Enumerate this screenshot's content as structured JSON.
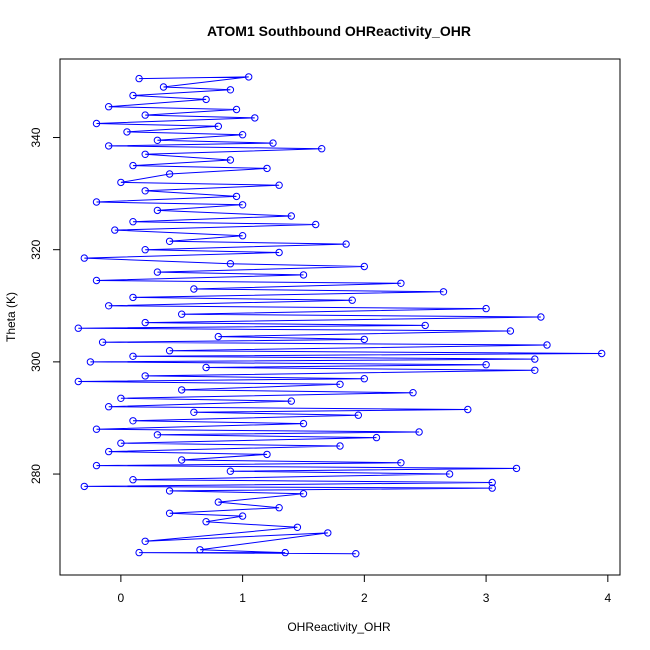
{
  "chart_data": {
    "type": "line",
    "title": "ATOM1 Southbound OHReactivity_OHR",
    "xlabel": "OHReactivity_OHR",
    "ylabel": "Theta (K)",
    "xlim": [
      -0.5,
      4.1
    ],
    "ylim": [
      262,
      354
    ],
    "xticks": [
      0,
      1,
      2,
      3,
      4
    ],
    "yticks": [
      280,
      300,
      320,
      340
    ],
    "grid": false,
    "legend": "none",
    "series_color": "#0000ff",
    "marker": "open-circle",
    "series": [
      {
        "values": [
          [
            0.15,
            350.5
          ],
          [
            1.05,
            350.8
          ],
          [
            0.35,
            349.0
          ],
          [
            0.9,
            348.5
          ],
          [
            0.1,
            347.5
          ],
          [
            0.7,
            346.8
          ],
          [
            -0.1,
            345.5
          ],
          [
            0.95,
            345.0
          ],
          [
            0.2,
            344.0
          ],
          [
            1.1,
            343.5
          ],
          [
            -0.2,
            342.5
          ],
          [
            0.8,
            342.0
          ],
          [
            0.05,
            341.0
          ],
          [
            1.0,
            340.5
          ],
          [
            0.3,
            339.5
          ],
          [
            1.25,
            339.0
          ],
          [
            -0.1,
            338.5
          ],
          [
            1.65,
            338.0
          ],
          [
            0.2,
            337.0
          ],
          [
            0.9,
            336.0
          ],
          [
            0.1,
            335.0
          ],
          [
            1.2,
            334.5
          ],
          [
            0.4,
            333.5
          ],
          [
            0.0,
            332.0
          ],
          [
            1.3,
            331.5
          ],
          [
            0.2,
            330.5
          ],
          [
            0.95,
            329.5
          ],
          [
            -0.2,
            328.5
          ],
          [
            1.0,
            328.0
          ],
          [
            0.3,
            327.0
          ],
          [
            1.4,
            326.0
          ],
          [
            0.1,
            325.0
          ],
          [
            1.6,
            324.5
          ],
          [
            -0.05,
            323.5
          ],
          [
            1.0,
            322.5
          ],
          [
            0.4,
            321.5
          ],
          [
            1.85,
            321.0
          ],
          [
            0.2,
            320.0
          ],
          [
            1.3,
            319.5
          ],
          [
            -0.3,
            318.5
          ],
          [
            0.9,
            317.5
          ],
          [
            2.0,
            317.0
          ],
          [
            0.3,
            316.0
          ],
          [
            1.5,
            315.5
          ],
          [
            -0.2,
            314.5
          ],
          [
            2.3,
            314.0
          ],
          [
            0.6,
            313.0
          ],
          [
            2.65,
            312.5
          ],
          [
            0.1,
            311.5
          ],
          [
            1.9,
            311.0
          ],
          [
            -0.1,
            310.0
          ],
          [
            3.0,
            309.5
          ],
          [
            0.5,
            308.5
          ],
          [
            3.45,
            308.0
          ],
          [
            0.2,
            307.0
          ],
          [
            2.5,
            306.5
          ],
          [
            -0.35,
            306.0
          ],
          [
            3.2,
            305.5
          ],
          [
            0.8,
            304.5
          ],
          [
            2.0,
            304.0
          ],
          [
            -0.15,
            303.5
          ],
          [
            3.5,
            303.0
          ],
          [
            0.4,
            302.0
          ],
          [
            3.95,
            301.5
          ],
          [
            0.1,
            301.0
          ],
          [
            3.4,
            300.5
          ],
          [
            -0.25,
            300.0
          ],
          [
            3.0,
            299.5
          ],
          [
            0.7,
            299.0
          ],
          [
            3.4,
            298.5
          ],
          [
            0.2,
            297.5
          ],
          [
            2.0,
            297.0
          ],
          [
            -0.35,
            296.5
          ],
          [
            1.8,
            296.0
          ],
          [
            0.5,
            295.0
          ],
          [
            2.4,
            294.5
          ],
          [
            0.0,
            293.5
          ],
          [
            1.4,
            293.0
          ],
          [
            -0.1,
            292.0
          ],
          [
            2.85,
            291.5
          ],
          [
            0.6,
            291.0
          ],
          [
            1.95,
            290.5
          ],
          [
            0.1,
            289.5
          ],
          [
            1.5,
            289.0
          ],
          [
            -0.2,
            288.0
          ],
          [
            2.45,
            287.5
          ],
          [
            0.3,
            287.0
          ],
          [
            2.1,
            286.5
          ],
          [
            0.0,
            285.5
          ],
          [
            1.8,
            285.0
          ],
          [
            -0.1,
            284.0
          ],
          [
            1.2,
            283.5
          ],
          [
            0.5,
            282.5
          ],
          [
            2.3,
            282.0
          ],
          [
            -0.2,
            281.5
          ],
          [
            3.25,
            281.0
          ],
          [
            0.9,
            280.5
          ],
          [
            2.7,
            280.0
          ],
          [
            0.1,
            279.0
          ],
          [
            3.05,
            278.5
          ],
          [
            -0.3,
            277.8
          ],
          [
            3.05,
            277.5
          ],
          [
            0.4,
            277.0
          ],
          [
            1.5,
            276.5
          ],
          [
            0.8,
            275.0
          ],
          [
            1.3,
            274.0
          ],
          [
            0.4,
            273.0
          ],
          [
            1.0,
            272.5
          ],
          [
            0.7,
            271.5
          ],
          [
            1.45,
            270.5
          ],
          [
            0.2,
            268.0
          ],
          [
            1.7,
            269.5
          ],
          [
            0.65,
            266.5
          ],
          [
            1.35,
            266.0
          ],
          [
            0.15,
            266.0
          ],
          [
            1.93,
            265.8
          ]
        ]
      }
    ]
  }
}
